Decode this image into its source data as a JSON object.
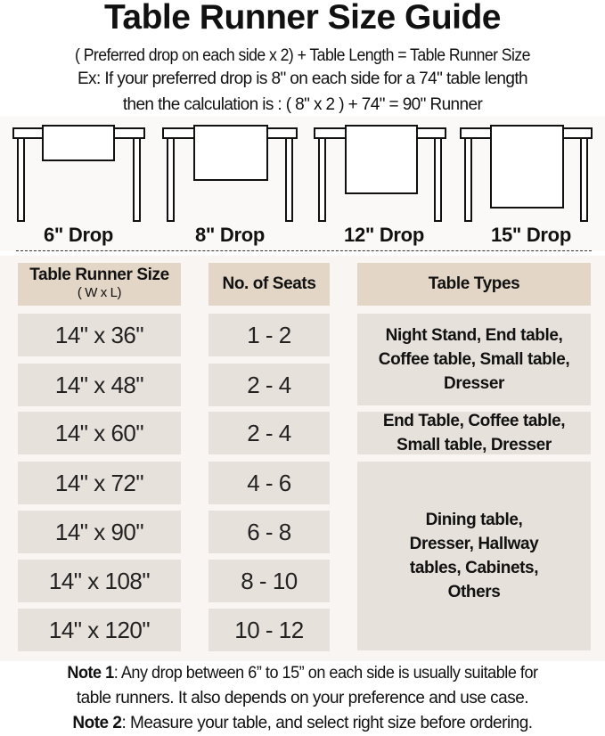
{
  "title": "Table Runner Size Guide",
  "formula": "( Preferred drop on each side x 2) + Table Length = Table Runner Size",
  "example_line1": "Ex: If your preferred drop is 8\" on each side for a 74\" table length",
  "example_line2": "then the calculation is : ( 8\" x 2 ) + 74\" = 90\" Runner",
  "drops": [
    "6\" Drop",
    "8\" Drop",
    "12\" Drop",
    "15\" Drop"
  ],
  "table": {
    "headers": {
      "size": "Table Runner Size",
      "size_sub": "( W x L)",
      "seats": "No. of Seats",
      "types": "Table Types"
    },
    "rows": [
      {
        "size": "14\" x 36\"",
        "seats": "1 - 2"
      },
      {
        "size": "14\" x 48\"",
        "seats": "2 - 4"
      },
      {
        "size": "14\" x 60\"",
        "seats": "2 - 4"
      },
      {
        "size": "14\" x 72\"",
        "seats": "4 - 6"
      },
      {
        "size": "14\" x 90\"",
        "seats": "6 - 8"
      },
      {
        "size": "14\" x 108\"",
        "seats": "8 - 10"
      },
      {
        "size": "14\" x 120\"",
        "seats": "10 - 12"
      }
    ],
    "type_groups": [
      "Night Stand, End table, Coffee table, Small table, Dresser",
      "End Table, Coffee table, Small table, Dresser",
      "Dining table, Dresser, Hallway tables, Cabinets, Others"
    ]
  },
  "notes": [
    {
      "label": "Note 1",
      "text": ": Any drop between 6” to 15” on each side is usually suitable for",
      "text2": "table runners. It also depends on your preference and use case."
    },
    {
      "label": "Note 2",
      "text": ": Measure your table, and select right size before ordering."
    }
  ],
  "colors": {
    "header_cell": "#e3d6c6",
    "body_cell": "#e7e1dc",
    "panel": "#f9f5f2"
  }
}
